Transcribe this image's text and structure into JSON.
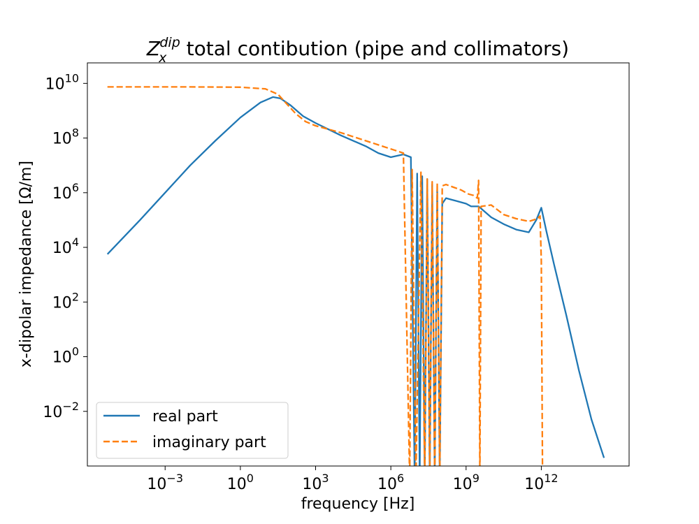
{
  "chart_data": {
    "type": "line",
    "title": {
      "symbol": "Z",
      "subscript": "x",
      "superscript": "dip",
      "text": " total contibution (pipe and collimators)"
    },
    "xlabel": "frequency [Hz]",
    "ylabel": "x-dipolar impedance [Ω/m]",
    "xscale": "log",
    "yscale": "log",
    "xlim_log10": [
      -6.1,
      15.5
    ],
    "ylim_log10": [
      -4.0,
      10.75
    ],
    "x_ticks": [
      {
        "exp": -3,
        "base": "10",
        "label": "−3"
      },
      {
        "exp": 0,
        "base": "10",
        "label": "0"
      },
      {
        "exp": 3,
        "base": "10",
        "label": "3"
      },
      {
        "exp": 6,
        "base": "10",
        "label": "6"
      },
      {
        "exp": 9,
        "base": "10",
        "label": "9"
      },
      {
        "exp": 12,
        "base": "10",
        "label": "12"
      }
    ],
    "y_ticks": [
      {
        "exp": 10,
        "base": "10",
        "label": "10"
      },
      {
        "exp": 8,
        "base": "10",
        "label": "8"
      },
      {
        "exp": 6,
        "base": "10",
        "label": "6"
      },
      {
        "exp": 4,
        "base": "10",
        "label": "4"
      },
      {
        "exp": 2,
        "base": "10",
        "label": "2"
      },
      {
        "exp": 0,
        "base": "10",
        "label": "0"
      },
      {
        "exp": -2,
        "base": "10",
        "label": "−2"
      }
    ],
    "legend": {
      "placement": "lower-left",
      "entries": [
        {
          "label": "real part",
          "color": "#1f77b4",
          "dash": "solid"
        },
        {
          "label": "imaginary part",
          "color": "#ff7f0e",
          "dash": "dashed"
        }
      ]
    },
    "series": [
      {
        "name": "real part",
        "color": "#1f77b4",
        "dash": "solid",
        "x_log10": [
          -5.3,
          -4,
          -3,
          -2,
          -1,
          0,
          0.8,
          1.3,
          1.6,
          2.0,
          2.5,
          3.0,
          4.0,
          5.0,
          5.5,
          6.0,
          6.5,
          6.8,
          6.95,
          7.05,
          7.15,
          7.25,
          7.35,
          7.45,
          7.55,
          7.65,
          7.75,
          7.85,
          7.95,
          8.05,
          8.2,
          8.4,
          8.6,
          8.8,
          9.0,
          9.2,
          9.5,
          10.0,
          10.5,
          11.0,
          11.5,
          11.8,
          12.0,
          12.2,
          12.5,
          13.0,
          13.5,
          14.0,
          14.5
        ],
        "y_log10": [
          3.75,
          5.0,
          6.0,
          7.0,
          7.9,
          8.75,
          9.3,
          9.5,
          9.45,
          9.2,
          8.8,
          8.55,
          8.1,
          7.7,
          7.45,
          7.3,
          7.4,
          7.3,
          -4.5,
          6.7,
          -4.5,
          6.6,
          -4.5,
          6.5,
          -4.5,
          6.3,
          -4.5,
          6.1,
          -4.5,
          5.6,
          5.8,
          5.75,
          5.7,
          5.65,
          5.6,
          5.5,
          5.5,
          5.1,
          4.85,
          4.65,
          4.55,
          5.0,
          5.45,
          4.6,
          3.4,
          1.5,
          -0.5,
          -2.3,
          -3.7
        ]
      },
      {
        "name": "imaginary part",
        "color": "#ff7f0e",
        "dash": "dashed",
        "x_log10": [
          -5.3,
          -4,
          -2,
          0,
          1.0,
          1.5,
          1.8,
          2.2,
          2.6,
          3.0,
          4.0,
          5.0,
          6.0,
          6.5,
          6.75,
          6.85,
          7.0,
          7.2,
          7.35,
          7.45,
          7.55,
          7.65,
          7.75,
          7.85,
          7.95,
          8.05,
          8.2,
          8.5,
          8.8,
          9.1,
          9.3,
          9.45,
          9.5,
          9.55,
          9.6,
          10.0,
          10.5,
          11.0,
          11.5,
          11.85,
          11.95,
          12.0,
          12.05
        ],
        "y_log10": [
          9.87,
          9.87,
          9.87,
          9.86,
          9.8,
          9.6,
          9.3,
          8.9,
          8.6,
          8.45,
          8.2,
          7.9,
          7.6,
          7.45,
          -4.5,
          6.85,
          -4.5,
          6.75,
          -4.5,
          6.5,
          -4.5,
          6.4,
          -4.5,
          6.35,
          -4.5,
          6.25,
          6.3,
          6.2,
          6.1,
          5.95,
          5.9,
          5.8,
          6.45,
          -4.5,
          5.5,
          5.55,
          5.2,
          5.05,
          4.95,
          5.05,
          5.15,
          3.5,
          -4.5
        ]
      }
    ]
  }
}
